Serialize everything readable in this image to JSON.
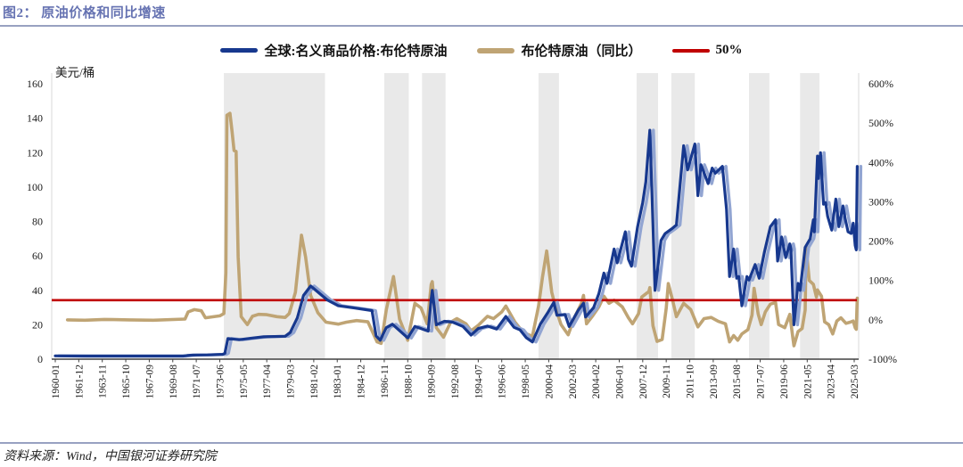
{
  "header": {
    "title": "图2： 原油价格和同比增速"
  },
  "legend": [
    {
      "label": "全球:名义商品价格:布伦特原油",
      "color": "#17388e"
    },
    {
      "label": "布伦特原油（同比）",
      "color": "#bfa474"
    },
    {
      "label": "50%",
      "color": "#c00000"
    }
  ],
  "footer": {
    "source": "资料来源：Wind，中国银河证券研究院"
  },
  "chart_data": {
    "type": "line",
    "unit_label_left": "美元/桶",
    "y_left": {
      "min": 0,
      "max": 160,
      "ticks": [
        0,
        20,
        40,
        60,
        80,
        100,
        120,
        140,
        160
      ]
    },
    "y_right": {
      "min": -100,
      "max": 600,
      "ticks": [
        "-100%",
        "0%",
        "100%",
        "200%",
        "300%",
        "400%",
        "500%",
        "600%"
      ]
    },
    "x_range": [
      "1960-01",
      "2025-06"
    ],
    "x_ticks": [
      "1960-01",
      "1961-12",
      "1963-11",
      "1965-10",
      "1967-09",
      "1969-08",
      "1971-07",
      "1973-06",
      "1975-05",
      "1977-04",
      "1979-03",
      "1981-02",
      "1983-01",
      "1984-12",
      "1986-11",
      "1988-10",
      "1990-09",
      "1992-08",
      "1994-07",
      "1996-06",
      "1998-05",
      "2000-04",
      "2002-03",
      "2004-02",
      "2006-01",
      "2007-12",
      "2009-11",
      "2011-10",
      "2013-09",
      "2015-08",
      "2017-07",
      "2019-06",
      "2021-05",
      "2023-04",
      "2025-03"
    ],
    "reference_line": {
      "label": "50%",
      "value_right_pct": 50,
      "color": "#c00000"
    },
    "shaded_bands": [
      [
        "1973-10",
        "1982-01"
      ],
      [
        "1986-11",
        "1988-11"
      ],
      [
        "1989-12",
        "1991-11"
      ],
      [
        "1999-06",
        "2001-02"
      ],
      [
        "2007-06",
        "2009-03"
      ],
      [
        "2010-04",
        "2012-03"
      ],
      [
        "2016-08",
        "2018-04"
      ],
      [
        "2020-10",
        "2022-05"
      ]
    ],
    "series": [
      {
        "name": "全球:名义商品价格:布伦特原油",
        "axis": "left",
        "unit": "美元/桶",
        "color": "#17388e",
        "shadow_color": "#92a5d2",
        "points": [
          [
            "1960-01",
            1.9
          ],
          [
            "1962-06",
            1.8
          ],
          [
            "1965-01",
            1.8
          ],
          [
            "1967-06",
            1.8
          ],
          [
            "1970-06",
            1.8
          ],
          [
            "1970-10",
            2.1
          ],
          [
            "1971-04",
            2.4
          ],
          [
            "1972-06",
            2.5
          ],
          [
            "1973-09",
            2.8
          ],
          [
            "1973-11",
            3.4
          ],
          [
            "1974-02",
            12
          ],
          [
            "1975-01",
            11.3
          ],
          [
            "1976-01",
            12.2
          ],
          [
            "1977-01",
            13
          ],
          [
            "1978-10",
            13.3
          ],
          [
            "1979-03",
            15.5
          ],
          [
            "1979-10",
            24
          ],
          [
            "1980-04",
            37
          ],
          [
            "1980-11",
            42.5
          ],
          [
            "1981-08",
            38
          ],
          [
            "1982-03",
            34.5
          ],
          [
            "1983-02",
            31
          ],
          [
            "1984-05",
            29.8
          ],
          [
            "1985-11",
            28.2
          ],
          [
            "1986-03",
            13.5
          ],
          [
            "1986-07",
            11
          ],
          [
            "1987-01",
            18.3
          ],
          [
            "1987-07",
            20.3
          ],
          [
            "1988-10",
            12.3
          ],
          [
            "1989-05",
            19
          ],
          [
            "1990-06",
            16.3
          ],
          [
            "1990-09",
            35
          ],
          [
            "1990-10",
            40
          ],
          [
            "1991-02",
            20
          ],
          [
            "1991-10",
            22
          ],
          [
            "1992-06",
            21.5
          ],
          [
            "1993-04",
            19
          ],
          [
            "1993-12",
            14
          ],
          [
            "1994-07",
            17.8
          ],
          [
            "1995-04",
            19.2
          ],
          [
            "1996-01",
            17.5
          ],
          [
            "1996-10",
            24.8
          ],
          [
            "1997-06",
            18.5
          ],
          [
            "1997-12",
            17
          ],
          [
            "1998-06",
            12.5
          ],
          [
            "1998-12",
            10
          ],
          [
            "1999-08",
            20.5
          ],
          [
            "2000-03",
            27
          ],
          [
            "2000-06",
            30
          ],
          [
            "2000-09",
            33
          ],
          [
            "2000-12",
            25.5
          ],
          [
            "2001-08",
            26
          ],
          [
            "2001-12",
            19
          ],
          [
            "2002-09",
            28.5
          ],
          [
            "2003-02",
            32.5
          ],
          [
            "2003-04",
            24.5
          ],
          [
            "2003-12",
            30
          ],
          [
            "2004-05",
            38
          ],
          [
            "2004-10",
            50
          ],
          [
            "2005-01",
            44
          ],
          [
            "2005-08",
            64
          ],
          [
            "2005-11",
            56
          ],
          [
            "2006-07",
            74
          ],
          [
            "2006-10",
            58
          ],
          [
            "2007-01",
            54
          ],
          [
            "2007-07",
            77
          ],
          [
            "2007-12",
            91
          ],
          [
            "2008-03",
            103
          ],
          [
            "2008-07",
            133
          ],
          [
            "2008-09",
            98
          ],
          [
            "2008-12",
            40
          ],
          [
            "2009-06",
            69
          ],
          [
            "2009-10",
            73
          ],
          [
            "2010-05",
            76
          ],
          [
            "2010-09",
            78
          ],
          [
            "2011-04",
            124
          ],
          [
            "2011-08",
            110
          ],
          [
            "2012-03",
            125
          ],
          [
            "2012-06",
            95
          ],
          [
            "2012-09",
            113
          ],
          [
            "2013-04",
            102
          ],
          [
            "2013-08",
            111
          ],
          [
            "2013-11",
            108
          ],
          [
            "2014-06",
            112
          ],
          [
            "2014-10",
            87
          ],
          [
            "2015-01",
            48
          ],
          [
            "2015-05",
            64
          ],
          [
            "2015-08",
            47
          ],
          [
            "2015-10",
            48
          ],
          [
            "2016-01",
            31
          ],
          [
            "2016-06",
            48
          ],
          [
            "2016-08",
            46
          ],
          [
            "2017-02",
            55
          ],
          [
            "2017-06",
            47
          ],
          [
            "2017-11",
            62
          ],
          [
            "2018-05",
            77
          ],
          [
            "2018-10",
            81
          ],
          [
            "2018-12",
            57
          ],
          [
            "2019-04",
            71
          ],
          [
            "2019-08",
            59
          ],
          [
            "2019-12",
            67
          ],
          [
            "2020-01",
            64
          ],
          [
            "2020-04",
            20
          ],
          [
            "2020-08",
            44
          ],
          [
            "2020-10",
            40
          ],
          [
            "2021-03",
            65
          ],
          [
            "2021-08",
            70
          ],
          [
            "2021-11",
            81
          ],
          [
            "2021-12",
            74
          ],
          [
            "2022-03",
            118
          ],
          [
            "2022-04",
            105
          ],
          [
            "2022-06",
            120
          ],
          [
            "2022-09",
            90
          ],
          [
            "2022-11",
            91
          ],
          [
            "2023-01",
            83
          ],
          [
            "2023-05",
            75
          ],
          [
            "2023-09",
            93
          ],
          [
            "2023-12",
            77
          ],
          [
            "2024-04",
            89
          ],
          [
            "2024-06",
            82
          ],
          [
            "2024-09",
            74
          ],
          [
            "2024-12",
            73
          ],
          [
            "2025-02",
            79
          ],
          [
            "2025-04",
            66
          ],
          [
            "2025-05",
            63.5
          ],
          [
            "2025-06",
            112
          ]
        ]
      },
      {
        "name": "布伦特原油（同比）",
        "axis": "right",
        "unit": "%",
        "color": "#bfa474",
        "points": [
          [
            "1961-01",
            0
          ],
          [
            "1962-06",
            -1
          ],
          [
            "1964-01",
            1
          ],
          [
            "1966-01",
            0
          ],
          [
            "1968-01",
            -1
          ],
          [
            "1970-08",
            2
          ],
          [
            "1970-11",
            20
          ],
          [
            "1971-05",
            26
          ],
          [
            "1971-12",
            23
          ],
          [
            "1972-04",
            5
          ],
          [
            "1973-06",
            10
          ],
          [
            "1973-10",
            16
          ],
          [
            "1973-12",
            120
          ],
          [
            "1974-01",
            520
          ],
          [
            "1974-04",
            525
          ],
          [
            "1974-06",
            480
          ],
          [
            "1974-08",
            430
          ],
          [
            "1974-10",
            428
          ],
          [
            "1974-12",
            160
          ],
          [
            "1975-03",
            8
          ],
          [
            "1975-09",
            -12
          ],
          [
            "1976-02",
            9
          ],
          [
            "1976-08",
            14
          ],
          [
            "1977-04",
            13
          ],
          [
            "1978-02",
            8
          ],
          [
            "1978-10",
            6
          ],
          [
            "1979-02",
            16
          ],
          [
            "1979-08",
            70
          ],
          [
            "1980-02",
            215
          ],
          [
            "1980-06",
            160
          ],
          [
            "1980-11",
            62
          ],
          [
            "1981-06",
            18
          ],
          [
            "1982-02",
            -6
          ],
          [
            "1983-02",
            -11
          ],
          [
            "1983-10",
            -6
          ],
          [
            "1984-08",
            -2
          ],
          [
            "1985-07",
            -5
          ],
          [
            "1986-04",
            -56
          ],
          [
            "1986-08",
            -60
          ],
          [
            "1987-01",
            25
          ],
          [
            "1987-08",
            110
          ],
          [
            "1988-02",
            2
          ],
          [
            "1988-10",
            -52
          ],
          [
            "1989-05",
            42
          ],
          [
            "1989-11",
            30
          ],
          [
            "1990-05",
            -10
          ],
          [
            "1990-09",
            90
          ],
          [
            "1990-10",
            97
          ],
          [
            "1991-02",
            -20
          ],
          [
            "1991-09",
            -44
          ],
          [
            "1992-04",
            -6
          ],
          [
            "1992-10",
            3
          ],
          [
            "1993-07",
            -10
          ],
          [
            "1993-12",
            -28
          ],
          [
            "1994-07",
            -14
          ],
          [
            "1995-04",
            9
          ],
          [
            "1995-10",
            3
          ],
          [
            "1996-06",
            20
          ],
          [
            "1996-10",
            35
          ],
          [
            "1997-07",
            -6
          ],
          [
            "1998-03",
            -32
          ],
          [
            "1998-12",
            -42
          ],
          [
            "1999-06",
            35
          ],
          [
            "1999-10",
            110
          ],
          [
            "2000-02",
            175
          ],
          [
            "2000-07",
            70
          ],
          [
            "2000-11",
            28
          ],
          [
            "2001-04",
            -12
          ],
          [
            "2001-11",
            -38
          ],
          [
            "2002-05",
            5
          ],
          [
            "2002-12",
            42
          ],
          [
            "2003-02",
            62
          ],
          [
            "2003-05",
            -10
          ],
          [
            "2003-11",
            10
          ],
          [
            "2004-05",
            33
          ],
          [
            "2004-10",
            60
          ],
          [
            "2005-03",
            42
          ],
          [
            "2005-08",
            50
          ],
          [
            "2006-04",
            33
          ],
          [
            "2006-10",
            5
          ],
          [
            "2007-02",
            -10
          ],
          [
            "2007-08",
            16
          ],
          [
            "2007-11",
            58
          ],
          [
            "2008-06",
            72
          ],
          [
            "2008-07",
            82
          ],
          [
            "2008-10",
            -15
          ],
          [
            "2009-02",
            -55
          ],
          [
            "2009-07",
            -50
          ],
          [
            "2009-11",
            30
          ],
          [
            "2010-01",
            92
          ],
          [
            "2010-05",
            52
          ],
          [
            "2010-09",
            8
          ],
          [
            "2011-04",
            42
          ],
          [
            "2011-11",
            26
          ],
          [
            "2012-06",
            -18
          ],
          [
            "2012-12",
            3
          ],
          [
            "2013-07",
            6
          ],
          [
            "2014-02",
            -4
          ],
          [
            "2014-09",
            -10
          ],
          [
            "2015-01",
            -56
          ],
          [
            "2015-05",
            -40
          ],
          [
            "2015-09",
            -52
          ],
          [
            "2016-01",
            -36
          ],
          [
            "2016-07",
            -25
          ],
          [
            "2016-11",
            12
          ],
          [
            "2017-01",
            80
          ],
          [
            "2017-05",
            15
          ],
          [
            "2017-08",
            -12
          ],
          [
            "2017-12",
            20
          ],
          [
            "2018-05",
            40
          ],
          [
            "2018-10",
            44
          ],
          [
            "2019-01",
            -12
          ],
          [
            "2019-07",
            -20
          ],
          [
            "2019-12",
            14
          ],
          [
            "2020-03",
            -48
          ],
          [
            "2020-04",
            -66
          ],
          [
            "2020-08",
            -30
          ],
          [
            "2020-12",
            -22
          ],
          [
            "2021-03",
            25
          ],
          [
            "2021-04",
            185
          ],
          [
            "2021-07",
            100
          ],
          [
            "2021-11",
            90
          ],
          [
            "2022-02",
            58
          ],
          [
            "2022-03",
            76
          ],
          [
            "2022-07",
            60
          ],
          [
            "2022-10",
            -5
          ],
          [
            "2023-02",
            -12
          ],
          [
            "2023-06",
            -36
          ],
          [
            "2023-10",
            -3
          ],
          [
            "2024-02",
            5
          ],
          [
            "2024-07",
            -9
          ],
          [
            "2024-11",
            -6
          ],
          [
            "2025-02",
            -3
          ],
          [
            "2025-04",
            -20
          ],
          [
            "2025-05",
            -24
          ],
          [
            "2025-06",
            55
          ]
        ]
      }
    ],
    "colors": {
      "band": "#e9e9e9",
      "axis_line": "#404040",
      "edge_line": "#d9d9d9",
      "tick_text": "#1a1a1a"
    },
    "legend_position": "top-center",
    "grid": false
  }
}
